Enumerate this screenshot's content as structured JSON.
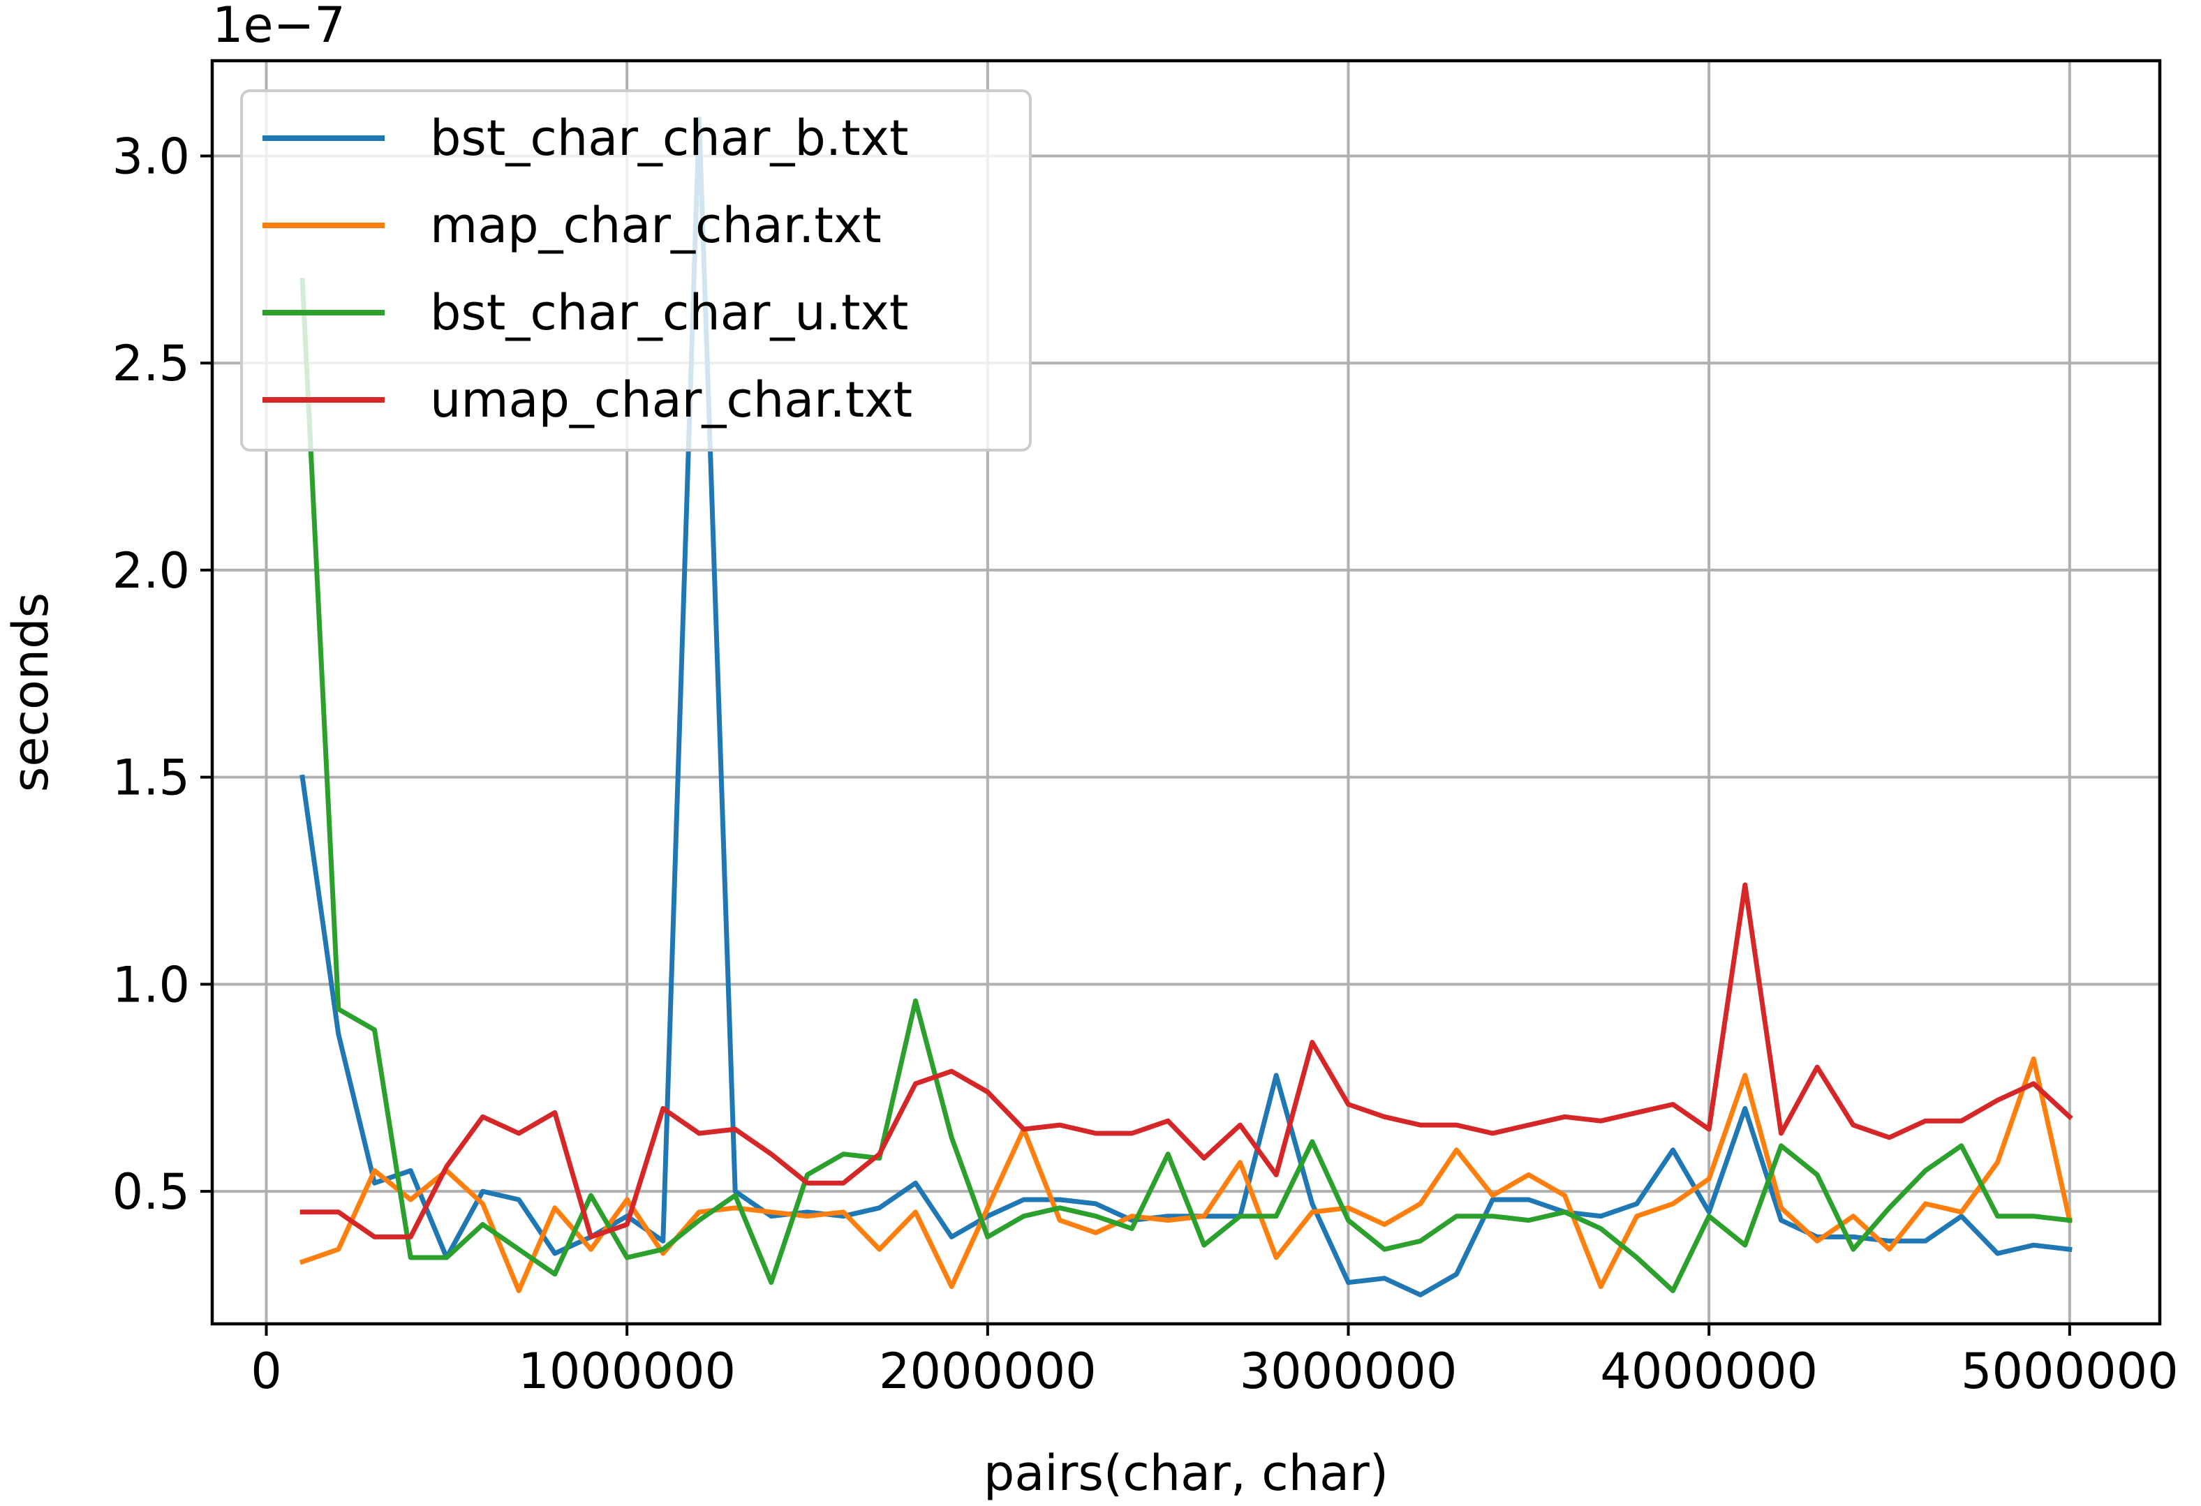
{
  "chart_data": {
    "type": "line",
    "title": "",
    "xlabel": "pairs(char, char)",
    "ylabel": "seconds",
    "offset_label": "1e−7",
    "xlim": [
      -150000,
      5250000
    ],
    "ylim": [
      0.18,
      3.23
    ],
    "xticks": [
      0,
      1000000,
      2000000,
      3000000,
      4000000,
      5000000
    ],
    "xtick_labels": [
      "0",
      "1000000",
      "2000000",
      "3000000",
      "4000000",
      "5000000"
    ],
    "yticks": [
      0.5,
      1.0,
      1.5,
      2.0,
      2.5,
      3.0
    ],
    "ytick_labels": [
      "0.5",
      "1.0",
      "1.5",
      "2.0",
      "2.5",
      "3.0"
    ],
    "grid": true,
    "legend_position": "top-left",
    "x": [
      100000,
      200000,
      300000,
      400000,
      500000,
      600000,
      700000,
      800000,
      900000,
      1000000,
      1100000,
      1200000,
      1300000,
      1400000,
      1500000,
      1600000,
      1700000,
      1800000,
      1900000,
      2000000,
      2100000,
      2200000,
      2300000,
      2400000,
      2500000,
      2600000,
      2700000,
      2800000,
      2900000,
      3000000,
      3100000,
      3200000,
      3300000,
      3400000,
      3500000,
      3600000,
      3700000,
      3800000,
      3900000,
      4000000,
      4100000,
      4200000,
      4300000,
      4400000,
      4500000,
      4600000,
      4700000,
      4800000,
      4900000,
      5000000
    ],
    "series": [
      {
        "name": "bst_char_char_b.txt",
        "color": "#1f77b4",
        "values": [
          1.5,
          0.88,
          0.52,
          0.55,
          0.34,
          0.5,
          0.48,
          0.35,
          0.39,
          0.44,
          0.38,
          3.09,
          0.5,
          0.44,
          0.45,
          0.44,
          0.46,
          0.52,
          0.39,
          0.44,
          0.48,
          0.48,
          0.47,
          0.43,
          0.44,
          0.44,
          0.44,
          0.78,
          0.47,
          0.28,
          0.29,
          0.25,
          0.3,
          0.48,
          0.48,
          0.45,
          0.44,
          0.47,
          0.6,
          0.45,
          0.7,
          0.43,
          0.39,
          0.39,
          0.38,
          0.38,
          0.44,
          0.35,
          0.37,
          0.36
        ]
      },
      {
        "name": "map_char_char.txt",
        "color": "#ff7f0e",
        "values": [
          0.33,
          0.36,
          0.55,
          0.48,
          0.55,
          0.47,
          0.26,
          0.46,
          0.36,
          0.48,
          0.35,
          0.45,
          0.46,
          0.45,
          0.44,
          0.45,
          0.36,
          0.45,
          0.27,
          0.46,
          0.65,
          0.43,
          0.4,
          0.44,
          0.43,
          0.44,
          0.57,
          0.34,
          0.45,
          0.46,
          0.42,
          0.47,
          0.6,
          0.49,
          0.54,
          0.49,
          0.27,
          0.44,
          0.47,
          0.53,
          0.78,
          0.46,
          0.38,
          0.44,
          0.36,
          0.47,
          0.45,
          0.57,
          0.82,
          0.43
        ]
      },
      {
        "name": "bst_char_char_u.txt",
        "color": "#2ca02c",
        "values": [
          2.7,
          0.94,
          0.89,
          0.34,
          0.34,
          0.42,
          0.36,
          0.3,
          0.49,
          0.34,
          0.36,
          0.43,
          0.49,
          0.28,
          0.54,
          0.59,
          0.58,
          0.96,
          0.63,
          0.39,
          0.44,
          0.46,
          0.44,
          0.41,
          0.59,
          0.37,
          0.44,
          0.44,
          0.62,
          0.43,
          0.36,
          0.38,
          0.44,
          0.44,
          0.43,
          0.45,
          0.41,
          0.34,
          0.26,
          0.44,
          0.37,
          0.61,
          0.54,
          0.36,
          0.46,
          0.55,
          0.61,
          0.44,
          0.44,
          0.43
        ]
      },
      {
        "name": "umap_char_char.txt",
        "color": "#d62728",
        "values": [
          0.45,
          0.45,
          0.39,
          0.39,
          0.56,
          0.68,
          0.64,
          0.69,
          0.39,
          0.42,
          0.7,
          0.64,
          0.65,
          0.59,
          0.52,
          0.52,
          0.59,
          0.76,
          0.79,
          0.74,
          0.65,
          0.66,
          0.64,
          0.64,
          0.67,
          0.58,
          0.66,
          0.54,
          0.86,
          0.71,
          0.68,
          0.66,
          0.66,
          0.64,
          0.66,
          0.68,
          0.67,
          0.69,
          0.71,
          0.65,
          1.24,
          0.64,
          0.8,
          0.66,
          0.63,
          0.67,
          0.67,
          0.72,
          0.76,
          0.68
        ]
      }
    ]
  }
}
